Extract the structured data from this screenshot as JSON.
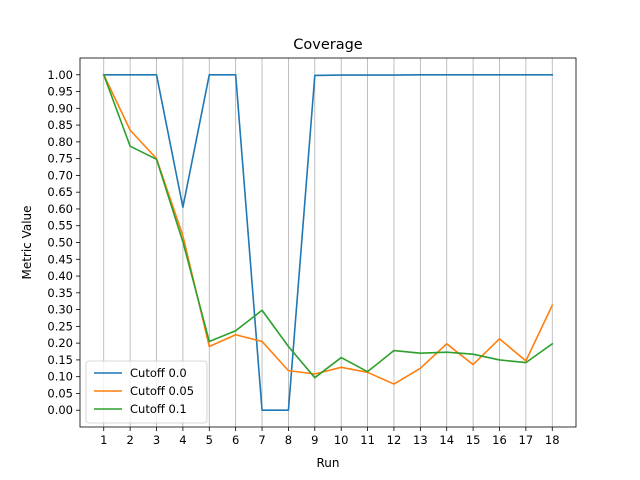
{
  "chart_data": {
    "type": "line",
    "title": "Coverage",
    "xlabel": "Run",
    "ylabel": "Metric Value",
    "x": [
      1,
      2,
      3,
      4,
      5,
      6,
      7,
      8,
      9,
      10,
      11,
      12,
      13,
      14,
      15,
      16,
      17,
      18
    ],
    "xlim": [
      0.1,
      18.9
    ],
    "ylim": [
      -0.05,
      1.05
    ],
    "yticks": [
      "0.00",
      "0.05",
      "0.10",
      "0.15",
      "0.20",
      "0.25",
      "0.30",
      "0.35",
      "0.40",
      "0.45",
      "0.50",
      "0.55",
      "0.60",
      "0.65",
      "0.70",
      "0.75",
      "0.80",
      "0.85",
      "0.90",
      "0.95",
      "1.00"
    ],
    "grid": "vertical",
    "legend_position": "lower-left",
    "series": [
      {
        "name": "Cutoff 0.0",
        "color": "#1f77b4",
        "values": [
          1.0,
          1.0,
          1.0,
          0.605,
          1.0,
          1.0,
          0.0,
          0.0,
          0.998,
          0.999,
          0.999,
          0.999,
          1.0,
          1.0,
          1.0,
          1.0,
          1.0,
          1.0
        ]
      },
      {
        "name": "Cutoff 0.05",
        "color": "#ff7f0e",
        "values": [
          1.0,
          0.835,
          0.75,
          0.52,
          0.19,
          0.225,
          0.205,
          0.118,
          0.108,
          0.128,
          0.113,
          0.078,
          0.125,
          0.198,
          0.136,
          0.213,
          0.147,
          0.313
        ]
      },
      {
        "name": "Cutoff 0.1",
        "color": "#2ca02c",
        "values": [
          1.0,
          0.787,
          0.748,
          0.502,
          0.205,
          0.237,
          0.298,
          0.19,
          0.097,
          0.157,
          0.115,
          0.178,
          0.17,
          0.173,
          0.167,
          0.15,
          0.142,
          0.198
        ]
      }
    ]
  }
}
